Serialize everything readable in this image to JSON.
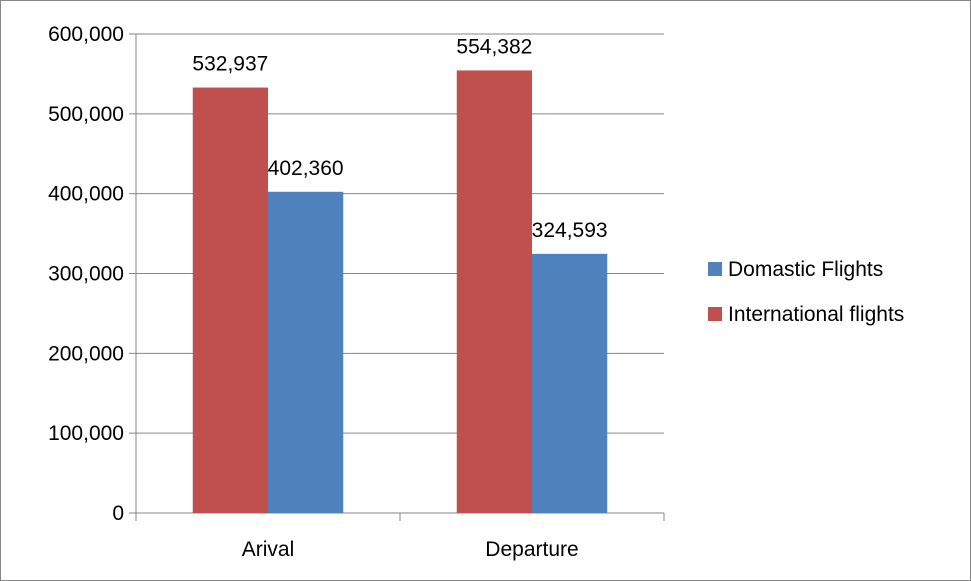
{
  "chart_data": {
    "type": "bar",
    "categories": [
      "Arival",
      "Departure"
    ],
    "series": [
      {
        "name": "International flights",
        "values": [
          532937,
          554382
        ],
        "color": "#C0504D"
      },
      {
        "name": "Domastic Flights",
        "values": [
          402360,
          324593
        ],
        "color": "#4F81BD"
      }
    ],
    "data_labels": [
      [
        "532,937",
        "554,382"
      ],
      [
        "402,360",
        "324,593"
      ]
    ],
    "ylim": [
      0,
      600000
    ],
    "yticks": [
      0,
      100000,
      200000,
      300000,
      400000,
      500000,
      600000
    ],
    "ytick_labels": [
      "0",
      "100,000",
      "200,000",
      "300,000",
      "400,000",
      "500,000",
      "600,000"
    ],
    "grid": "horizontal",
    "legend": {
      "position": "right",
      "entries": [
        {
          "name": "Domastic Flights",
          "color": "#4F81BD"
        },
        {
          "name": "International flights",
          "color": "#C0504D"
        }
      ]
    },
    "title": "",
    "xlabel": "",
    "ylabel": ""
  }
}
